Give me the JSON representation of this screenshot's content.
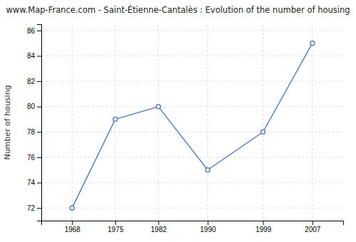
{
  "chart_data": {
    "type": "line",
    "title": "www.Map-France.com - Saint-Étienne-Cantalès : Evolution of the number of housing",
    "ylabel": "Number of housing",
    "x": [
      1968,
      1975,
      1982,
      1990,
      1999,
      2007
    ],
    "values": [
      72,
      79,
      80,
      75,
      78,
      85
    ],
    "xlim": [
      1963,
      2012
    ],
    "xticks": [
      1968,
      1975,
      1982,
      1990,
      1999,
      2007
    ],
    "ylim": [
      71.0,
      86.5
    ],
    "yticks": [
      72,
      74,
      76,
      78,
      80,
      82,
      84,
      86
    ],
    "color": "#5b82b5",
    "marker": "circle",
    "grid": true
  }
}
